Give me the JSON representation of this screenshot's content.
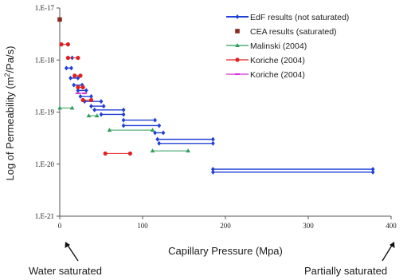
{
  "chart_data": {
    "type": "scatter",
    "xlabel": "Capillary Pressure (Mpa)",
    "ylabel_parts": [
      "Log of Permeability (m",
      "2",
      "/Pa/s)"
    ],
    "xlim": [
      0,
      400
    ],
    "ylim": [
      1e-21,
      1e-17
    ],
    "y_scale": "log",
    "x_ticks": [
      0,
      100,
      200,
      300,
      400
    ],
    "x_tick_labels": [
      "0",
      "100",
      "200",
      "300",
      "400"
    ],
    "y_ticks": [
      1e-21,
      1e-20,
      1e-19,
      1e-18,
      1e-17
    ],
    "y_tick_labels": [
      "1.E-21",
      "1.E-20",
      "1.E-19",
      "1.E-18",
      "1.E-17"
    ],
    "grid": false,
    "legend_position": "top-right",
    "series": [
      {
        "name": "EdF results (not saturated)",
        "color": "#1f3fd6",
        "marker": "diamond",
        "points": [
          {
            "x_from": 10,
            "x_to": 15,
            "y": 1.1e-18
          },
          {
            "x_from": 8,
            "x_to": 14,
            "y": 7e-19
          },
          {
            "x_from": 13,
            "x_to": 22,
            "y": 4.5e-19
          },
          {
            "x_from": 17,
            "x_to": 27,
            "y": 3.3e-19
          },
          {
            "x_from": 22,
            "x_to": 32,
            "y": 2.6e-19
          },
          {
            "x_from": 25,
            "x_to": 38,
            "y": 2e-19
          },
          {
            "x_from": 30,
            "x_to": 50,
            "y": 1.6e-19
          },
          {
            "x_from": 38,
            "x_to": 53,
            "y": 1.3e-19
          },
          {
            "x_from": 42,
            "x_to": 77,
            "y": 1.1e-19
          },
          {
            "x_from": 50,
            "x_to": 77,
            "y": 9e-20
          },
          {
            "x_from": 77,
            "x_to": 115,
            "y": 7e-20
          },
          {
            "x_from": 77,
            "x_to": 120,
            "y": 5.5e-20
          },
          {
            "x_from": 115,
            "x_to": 125,
            "y": 4e-20
          },
          {
            "x_from": 118,
            "x_to": 185,
            "y": 3e-20
          },
          {
            "x_from": 120,
            "x_to": 185,
            "y": 2.5e-20
          },
          {
            "x_from": 185,
            "x_to": 378,
            "y": 8e-21
          },
          {
            "x_from": 185,
            "x_to": 378,
            "y": 7e-21
          }
        ]
      },
      {
        "name": "CEA results (saturated)",
        "color": "#8b2b1f",
        "marker": "square",
        "points": [
          {
            "x": 0,
            "y": 6e-18
          }
        ]
      },
      {
        "name": "Malinski (2004)",
        "color": "#2e9e5a",
        "marker": "triangle",
        "points": [
          {
            "x_from": 0,
            "x_to": 15,
            "y": 1.2e-19
          },
          {
            "x_from": 35,
            "x_to": 45,
            "y": 8.5e-20
          },
          {
            "x_from": 60,
            "x_to": 112,
            "y": 4.5e-20
          },
          {
            "x_from": 112,
            "x_to": 155,
            "y": 1.8e-20
          }
        ]
      },
      {
        "name": "Koriche (2004)",
        "color": "#e02020",
        "marker": "circle",
        "points": [
          {
            "x_from": 2,
            "x_to": 10,
            "y": 2e-18
          },
          {
            "x_from": 10,
            "x_to": 22,
            "y": 1.1e-18
          },
          {
            "x_from": 18,
            "x_to": 25,
            "y": 5e-19
          },
          {
            "x_from": 22,
            "x_to": 28,
            "y": 3e-19
          },
          {
            "x_from": 28,
            "x_to": 38,
            "y": 1.7e-19
          },
          {
            "x_from": 55,
            "x_to": 85,
            "y": 1.6e-20
          }
        ]
      },
      {
        "name": "Koriche (2004)",
        "color": "#d42ed4",
        "marker": "dash",
        "points": [
          {
            "x_from": 22,
            "x_to": 30,
            "y": 2.3e-19
          }
        ]
      }
    ]
  },
  "annotations": {
    "left_label": "Water saturated",
    "right_label": "Partially saturated"
  }
}
